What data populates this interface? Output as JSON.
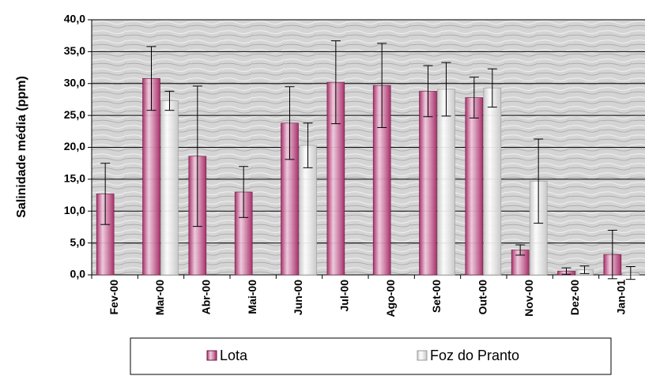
{
  "chart_data": {
    "type": "bar",
    "y_label": "Salinidade média (ppm)",
    "categories": [
      "Fev-00",
      "Mar-00",
      "Abr-00",
      "Mai-00",
      "Jun-00",
      "Jul-00",
      "Ago-00",
      "Set-00",
      "Out-00",
      "Nov-00",
      "Dez-00",
      "Jan-01"
    ],
    "series": [
      {
        "name": "Lota",
        "color": "#a8306a",
        "values": [
          12.7,
          30.8,
          18.6,
          13.0,
          23.8,
          30.2,
          29.7,
          28.8,
          27.8,
          3.9,
          0.6,
          3.2
        ],
        "errors": [
          4.8,
          5.0,
          11.0,
          4.0,
          5.7,
          6.5,
          6.6,
          4.0,
          3.2,
          0.8,
          0.5,
          3.8
        ]
      },
      {
        "name": "Foz do Pranto",
        "color": "#c8c8c8",
        "values": [
          null,
          27.3,
          null,
          null,
          20.3,
          null,
          null,
          29.1,
          29.3,
          14.7,
          0.8,
          0.3
        ],
        "errors": [
          null,
          1.5,
          null,
          null,
          3.5,
          null,
          null,
          4.2,
          3.0,
          6.6,
          0.6,
          1.0
        ]
      }
    ],
    "ylim": [
      0,
      40
    ],
    "yticks": [
      {
        "value": 0,
        "label": "0,0"
      },
      {
        "value": 5,
        "label": "5,0"
      },
      {
        "value": 10,
        "label": "10,0"
      },
      {
        "value": 15,
        "label": "15,0"
      },
      {
        "value": 20,
        "label": "20,0"
      },
      {
        "value": 25,
        "label": "25,0"
      },
      {
        "value": 30,
        "label": "30,0"
      },
      {
        "value": 35,
        "label": "35,0"
      },
      {
        "value": 40,
        "label": "40,0"
      }
    ],
    "grid": true,
    "legend": "bottom"
  }
}
